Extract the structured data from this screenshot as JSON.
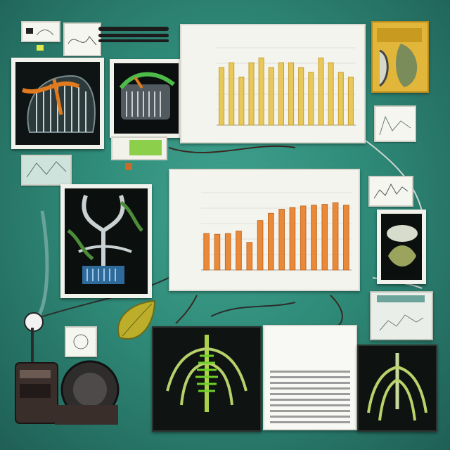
{
  "top_chart": {
    "title": "",
    "series": [
      {
        "values": [
          6,
          6.5,
          5,
          6.5,
          7,
          6,
          6.5,
          6.5,
          6,
          5.5,
          7,
          6.5,
          5.5,
          5
        ]
      }
    ],
    "colors": {
      "bar": "#e8c85a",
      "bar_edge": "#c9a02a"
    }
  },
  "middle_chart": {
    "title": "",
    "series": [
      {
        "values": [
          4.5,
          4.4,
          4.5,
          4.8,
          3.4,
          6.1,
          7.0,
          7.5,
          7.7,
          7.9,
          8.0,
          8.1,
          8.3,
          8.0
        ]
      }
    ],
    "colors": {
      "bar": "#e98a3a",
      "bar_edge": "#c66a20"
    }
  },
  "document": {
    "heading_lines": [
      "",
      "",
      ""
    ]
  },
  "colors": {
    "board": "#2f8a78",
    "paper": "#f4f4ef",
    "accent_yellow": "#e2b63b",
    "accent_green": "#7fbf3a",
    "accent_orange": "#e98a3a"
  },
  "icons": {
    "instrument": "lab-instrument-icon",
    "probe": "probe-icon",
    "leaf": "leaf-icon"
  }
}
